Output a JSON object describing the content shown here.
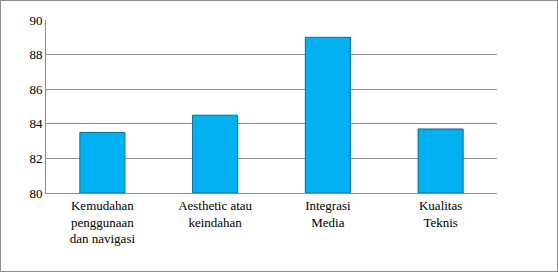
{
  "chart_data": {
    "type": "bar",
    "categories": [
      "Kemudahan\npenggunaan\ndan navigasi",
      "Aesthetic atau\nkeindahan",
      "Integrasi\nMedia",
      "Kualitas\nTeknis"
    ],
    "values": [
      83.5,
      84.5,
      89,
      83.7
    ],
    "color": "#00b0f0",
    "ylim": [
      80,
      90
    ],
    "yticks": [
      80,
      82,
      84,
      86,
      88,
      90
    ],
    "grid": true
  }
}
